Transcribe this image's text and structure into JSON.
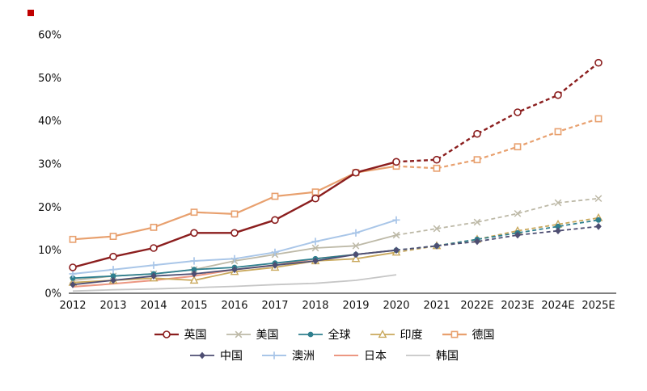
{
  "chart_data": {
    "type": "line",
    "title": "",
    "xlabel": "",
    "ylabel": "",
    "ylim": [
      0,
      60
    ],
    "grid": false,
    "legend_position": "bottom",
    "x_categories": [
      "2012",
      "2013",
      "2014",
      "2015",
      "2016",
      "2017",
      "2018",
      "2019",
      "2020",
      "2021",
      "2022E",
      "2023E",
      "2024E",
      "2025E"
    ],
    "y_ticks": [
      "0%",
      "10%",
      "20%",
      "30%",
      "40%",
      "50%",
      "60%"
    ],
    "legend_rows": [
      [
        "英国",
        "美国",
        "全球",
        "印度",
        "德国"
      ],
      [
        "中国",
        "澳洲",
        "日本",
        "韩国"
      ]
    ],
    "series": [
      {
        "name": "英国",
        "color": "#8b1e1e",
        "marker": "open-circle",
        "line_width": 2.4,
        "dash_from_index": 8,
        "values": [
          6,
          8.5,
          10.5,
          14,
          14,
          17,
          22,
          28,
          30.5,
          31,
          37,
          42,
          46,
          53.5
        ]
      },
      {
        "name": "美国",
        "color": "#bdb9a7",
        "marker": "x",
        "line_width": 1.8,
        "dash_from_index": 8,
        "values": [
          3,
          4,
          4.5,
          5.5,
          7.5,
          9,
          10.5,
          11,
          13.5,
          15,
          16.5,
          18.5,
          21,
          22
        ]
      },
      {
        "name": "全球",
        "color": "#2f7f8e",
        "marker": "filled-circle",
        "line_width": 1.8,
        "dash_from_index": 8,
        "values": [
          3.5,
          4,
          4.5,
          5.5,
          6,
          7,
          8,
          9,
          10,
          11,
          12.5,
          14,
          15.5,
          17
        ]
      },
      {
        "name": "印度",
        "color": "#c9a85c",
        "marker": "open-triangle",
        "line_width": 1.8,
        "dash_from_index": 8,
        "values": [
          2.5,
          3,
          3.5,
          3,
          5,
          6,
          7.5,
          8,
          9.5,
          11,
          12.5,
          14.5,
          16,
          17.5
        ]
      },
      {
        "name": "德国",
        "color": "#e8a06e",
        "marker": "open-square",
        "line_width": 2.2,
        "dash_from_index": 8,
        "values": [
          12.5,
          13.2,
          15.3,
          18.8,
          18.4,
          22.5,
          23.5,
          28,
          29.5,
          29,
          31,
          34,
          37.5,
          40.5
        ]
      },
      {
        "name": "中国",
        "color": "#4e4e72",
        "marker": "filled-diamond",
        "line_width": 1.8,
        "dash_from_index": 8,
        "values": [
          2,
          3,
          4,
          4.5,
          5.5,
          6.5,
          7.5,
          9,
          10,
          11,
          12,
          13.5,
          14.5,
          15.5
        ]
      },
      {
        "name": "澳洲",
        "color": "#a9c6e8",
        "marker": "plus",
        "line_width": 2,
        "dash_from_index": null,
        "values": [
          4.5,
          5.5,
          6.5,
          7.5,
          8,
          9.5,
          12,
          14,
          17,
          null,
          null,
          null,
          null,
          null
        ]
      },
      {
        "name": "日本",
        "color": "#ec9782",
        "marker": "none",
        "line_width": 2,
        "dash_from_index": null,
        "values": [
          1.5,
          2.2,
          3,
          4,
          5.5,
          6.5,
          8,
          9,
          10,
          null,
          null,
          null,
          null,
          null
        ]
      },
      {
        "name": "韩国",
        "color": "#c6c6c6",
        "marker": "none",
        "line_width": 1.8,
        "dash_from_index": null,
        "values": [
          0.5,
          0.8,
          1,
          1.3,
          1.6,
          2,
          2.3,
          3,
          4.3,
          null,
          null,
          null,
          null,
          null
        ]
      }
    ]
  }
}
